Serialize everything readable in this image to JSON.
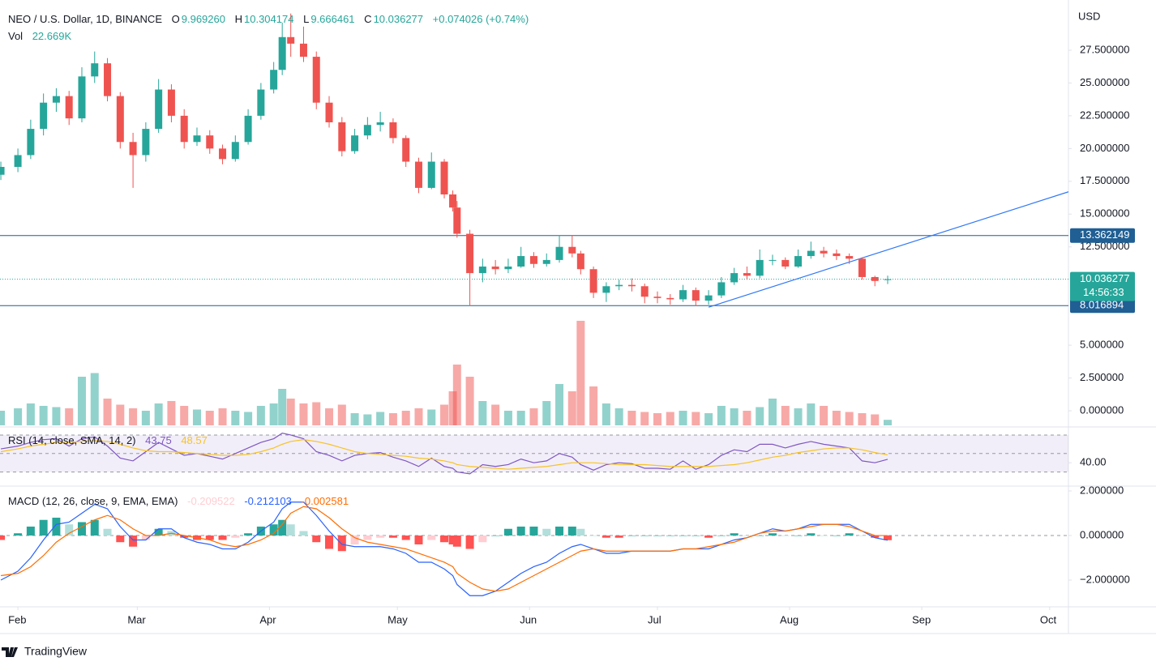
{
  "header": {
    "symbol": "NEO / U.S. Dollar, 1D, BINANCE",
    "fields": [
      {
        "label": "O",
        "value": "9.969260"
      },
      {
        "label": "H",
        "value": "10.304174"
      },
      {
        "label": "L",
        "value": "9.666461"
      },
      {
        "label": "C",
        "value": "10.036277"
      }
    ],
    "change": "+0.074026 (+0.74%)",
    "value_color": "#26a69a"
  },
  "currency": "USD",
  "brand": "TradingView",
  "chart_data": [
    {
      "type": "candlestick",
      "up_color": "#26a69a",
      "down_color": "#ef5350",
      "x": [
        -4,
        0,
        3,
        6,
        9,
        12,
        15,
        18,
        21,
        24,
        27,
        30,
        33,
        36,
        39,
        42,
        45,
        48,
        51,
        54,
        57,
        60,
        62,
        64,
        67,
        70,
        73,
        76,
        79,
        82,
        85,
        88,
        91,
        94,
        97,
        100,
        102,
        103,
        106,
        109,
        112,
        115,
        118,
        121,
        124,
        127,
        130,
        132,
        135,
        138,
        141,
        144,
        147,
        150,
        153,
        156,
        159,
        162,
        165,
        168,
        171,
        174,
        177,
        180,
        183,
        186,
        189,
        192,
        195,
        198,
        201,
        204
      ],
      "open": [
        18.0,
        18.6,
        19.5,
        21.5,
        23.5,
        24.0,
        22.3,
        25.5,
        26.5,
        24.0,
        20.5,
        19.5,
        21.5,
        24.5,
        22.5,
        20.5,
        21.0,
        20.0,
        19.2,
        20.5,
        22.5,
        24.5,
        26.0,
        28.5,
        28.0,
        27.0,
        23.5,
        22.0,
        19.8,
        21.0,
        21.8,
        22.0,
        20.8,
        19.0,
        17.0,
        19.0,
        16.5,
        15.5,
        13.5,
        10.5,
        11.0,
        10.8,
        11.0,
        11.8,
        11.2,
        11.5,
        12.5,
        12.0,
        10.8,
        9.0,
        9.5,
        9.6,
        9.5,
        8.7,
        8.6,
        8.5,
        9.2,
        8.4,
        8.8,
        9.8,
        10.5,
        10.3,
        11.5,
        11.5,
        11.0,
        11.8,
        12.2,
        12.0,
        11.8,
        11.6,
        10.2,
        9.96926
      ],
      "high": [
        19.0,
        20.0,
        22.2,
        24.2,
        24.6,
        24.4,
        26.2,
        27.4,
        26.9,
        24.3,
        21.2,
        22.0,
        25.3,
        24.9,
        23.0,
        21.6,
        21.4,
        20.3,
        21.0,
        23.0,
        25.0,
        26.6,
        29.6,
        30.3,
        29.3,
        27.4,
        24.0,
        22.4,
        21.5,
        22.4,
        22.8,
        22.3,
        21.0,
        19.3,
        19.7,
        19.2,
        16.8,
        16.0,
        13.8,
        11.6,
        11.5,
        11.6,
        12.5,
        12.1,
        12.0,
        13.4,
        13.4,
        12.2,
        11.0,
        9.8,
        10.0,
        10.1,
        9.7,
        9.1,
        8.9,
        9.6,
        9.4,
        9.2,
        10.2,
        10.9,
        11.0,
        12.3,
        11.9,
        11.7,
        12.3,
        12.9,
        12.5,
        12.3,
        12.0,
        11.7,
        10.3,
        10.304174
      ],
      "low": [
        17.6,
        18.2,
        19.2,
        21.0,
        22.8,
        21.8,
        22.0,
        25.0,
        23.6,
        20.0,
        17.0,
        19.0,
        21.2,
        22.0,
        20.0,
        20.2,
        19.6,
        18.8,
        19.0,
        20.3,
        22.2,
        24.2,
        25.6,
        27.0,
        26.6,
        23.0,
        21.6,
        19.4,
        19.6,
        20.7,
        21.3,
        20.4,
        18.6,
        16.6,
        16.9,
        16.2,
        15.2,
        13.2,
        8.0,
        9.8,
        10.4,
        10.5,
        10.9,
        10.9,
        11.0,
        11.3,
        11.7,
        10.4,
        8.6,
        8.3,
        9.2,
        9.1,
        8.2,
        8.2,
        8.1,
        8.3,
        8.0,
        8.1,
        8.6,
        9.6,
        10.0,
        10.1,
        11.1,
        10.8,
        10.9,
        11.6,
        11.7,
        11.5,
        11.2,
        10.0,
        9.5,
        9.666461
      ],
      "close": [
        18.6,
        19.5,
        21.5,
        23.5,
        24.0,
        22.3,
        25.5,
        26.5,
        24.0,
        20.5,
        19.5,
        21.5,
        24.5,
        22.5,
        20.5,
        21.0,
        20.0,
        19.2,
        20.5,
        22.5,
        24.5,
        26.0,
        28.5,
        28.0,
        27.0,
        23.5,
        22.0,
        19.8,
        21.0,
        21.8,
        22.0,
        20.8,
        19.0,
        17.0,
        19.0,
        16.5,
        15.5,
        13.5,
        10.5,
        11.0,
        10.8,
        11.0,
        11.8,
        11.2,
        11.5,
        12.5,
        12.0,
        10.8,
        9.0,
        9.5,
        9.6,
        9.5,
        8.7,
        8.6,
        8.5,
        9.2,
        8.4,
        8.8,
        9.8,
        10.5,
        10.3,
        11.5,
        11.5,
        11.0,
        11.8,
        12.2,
        12.0,
        11.8,
        11.6,
        10.2,
        9.9,
        10.036277
      ],
      "xlim": [
        -4.2,
        246.4
      ],
      "xticks": [
        {
          "value": 0,
          "label": "Feb"
        },
        {
          "value": 28,
          "label": "Mar"
        },
        {
          "value": 59,
          "label": "Apr"
        },
        {
          "value": 89,
          "label": "May"
        },
        {
          "value": 120,
          "label": "Jun"
        },
        {
          "value": 150,
          "label": "Jul"
        },
        {
          "value": 181,
          "label": "Aug"
        },
        {
          "value": 212,
          "label": "Sep"
        },
        {
          "value": 242,
          "label": "Oct"
        }
      ],
      "ylim": [
        -1.11,
        31.02
      ],
      "yticks": [
        {
          "value": 0,
          "label": "0.000000"
        },
        {
          "value": 2.5,
          "label": "2.500000"
        },
        {
          "value": 5,
          "label": "5.000000"
        },
        {
          "value": 12.5,
          "label": "12.500000"
        },
        {
          "value": 15,
          "label": "15.000000"
        },
        {
          "value": 17.5,
          "label": "17.500000"
        },
        {
          "value": 20,
          "label": "20.000000"
        },
        {
          "value": 22.5,
          "label": "22.500000"
        },
        {
          "value": 25,
          "label": "25.000000"
        },
        {
          "value": 27.5,
          "label": "27.500000"
        }
      ],
      "hlines": [
        {
          "value": 13.362149,
          "color": "#1f5f94"
        },
        {
          "value": 8.016894,
          "color": "#1f5f94"
        }
      ],
      "trendline": {
        "x": [
          162,
          246.4
        ],
        "y": [
          7.9,
          16.7
        ],
        "color": "#3179f5"
      },
      "countdown": "14:56:33"
    },
    {
      "type": "bar",
      "legend": {
        "label": "Vol",
        "value": "22.669K"
      },
      "up_color": "rgba(38,166,154,0.5)",
      "down_color": "rgba(239,83,80,0.5)",
      "values": [
        60,
        70,
        90,
        80,
        75,
        70,
        200,
        215,
        110,
        85,
        70,
        60,
        90,
        100,
        80,
        65,
        60,
        70,
        60,
        55,
        80,
        90,
        150,
        110,
        90,
        95,
        70,
        85,
        50,
        45,
        55,
        50,
        60,
        70,
        65,
        85,
        140,
        250,
        200,
        100,
        85,
        60,
        60,
        70,
        100,
        170,
        140,
        430,
        160,
        90,
        70,
        60,
        55,
        50,
        55,
        60,
        55,
        50,
        80,
        70,
        60,
        75,
        110,
        80,
        70,
        90,
        80,
        60,
        55,
        50,
        45,
        22.669
      ],
      "ylim": [
        0,
        1733
      ]
    },
    {
      "type": "line",
      "title": "RSI (14, close, SMA, 14, 2)",
      "ylim": [
        16.5,
        76.1
      ],
      "yticks": [
        {
          "value": 40,
          "label": "40.00"
        }
      ],
      "bands": [
        30,
        50,
        70
      ],
      "band_color": "rgba(126,87,194,0.1)",
      "series": [
        {
          "color": "#7e57c2",
          "values": [
            55,
            58,
            62,
            65,
            66,
            58,
            66,
            68,
            58,
            45,
            42,
            52,
            62,
            55,
            48,
            50,
            47,
            44,
            50,
            56,
            62,
            66,
            72,
            70,
            66,
            52,
            48,
            42,
            48,
            50,
            51,
            46,
            42,
            36,
            45,
            36,
            34,
            30,
            28,
            38,
            36,
            38,
            44,
            40,
            42,
            50,
            46,
            38,
            32,
            38,
            40,
            39,
            34,
            34,
            33,
            42,
            33,
            38,
            48,
            54,
            52,
            60,
            60,
            56,
            60,
            63,
            60,
            58,
            56,
            42,
            40,
            43.75
          ]
        },
        {
          "color": "#f7c325",
          "values": [
            52,
            55,
            58,
            60,
            62,
            62,
            63,
            64,
            63,
            60,
            56,
            53,
            52,
            52,
            51,
            50,
            49,
            48,
            48,
            49,
            52,
            56,
            60,
            63,
            65,
            63,
            60,
            56,
            52,
            50,
            49,
            48,
            47,
            45,
            44,
            42,
            40,
            38,
            36,
            35,
            34,
            33,
            34,
            35,
            36,
            38,
            40,
            40,
            40,
            39,
            38,
            38,
            38,
            37,
            36,
            36,
            36,
            36,
            37,
            38,
            40,
            43,
            46,
            48,
            51,
            53,
            55,
            56,
            56,
            54,
            51,
            48.57
          ]
        }
      ]
    },
    {
      "type": "line",
      "title": "MACD (12, 26, close, 9, EMA, EMA)",
      "ylim": [
        -3.164,
        2.145
      ],
      "yticks": [
        {
          "value": 2,
          "label": "2.000000"
        },
        {
          "value": 0,
          "label": "0.000000"
        },
        {
          "value": -2,
          "label": "−2.000000"
        }
      ],
      "bands": [
        0
      ],
      "bars": {
        "colors": [
          "#26a69a",
          "#b2dfdb",
          "#ff5252",
          "#ffcdd2"
        ],
        "values": [
          -0.2,
          0.1,
          0.4,
          0.7,
          0.8,
          0.5,
          0.6,
          0.7,
          0.3,
          -0.3,
          -0.5,
          -0.2,
          0.3,
          0.2,
          -0.1,
          -0.2,
          -0.2,
          -0.2,
          -0.1,
          0.1,
          0.4,
          0.5,
          0.7,
          0.5,
          0.2,
          -0.3,
          -0.6,
          -0.7,
          -0.4,
          -0.2,
          -0.1,
          -0.1,
          -0.2,
          -0.4,
          -0.2,
          -0.3,
          -0.4,
          -0.5,
          -0.6,
          -0.3,
          0,
          0.3,
          0.4,
          0.4,
          0.3,
          0.4,
          0.4,
          0.3,
          0,
          -0.1,
          -0.1,
          0,
          0,
          0,
          0,
          0,
          0,
          -0.1,
          0,
          0.1,
          0,
          0,
          0.1,
          0,
          0,
          0.1,
          0,
          0,
          0.1,
          0,
          -0.1,
          -0.209522
        ]
      },
      "series": [
        {
          "color": "#2962ff",
          "values": [
            -2.0,
            -1.6,
            -1.0,
            -0.2,
            0.5,
            0.6,
            1.0,
            1.4,
            1.2,
            0.4,
            -0.2,
            -0.2,
            0.3,
            0.3,
            -0.1,
            -0.3,
            -0.4,
            -0.6,
            -0.6,
            -0.3,
            0.2,
            0.6,
            1.2,
            1.5,
            1.5,
            0.9,
            0.2,
            -0.4,
            -0.5,
            -0.5,
            -0.5,
            -0.6,
            -0.8,
            -1.2,
            -1.2,
            -1.5,
            -1.8,
            -2.2,
            -2.7,
            -2.7,
            -2.5,
            -2.1,
            -1.7,
            -1.4,
            -1.2,
            -0.8,
            -0.5,
            -0.4,
            -0.6,
            -0.8,
            -0.8,
            -0.7,
            -0.7,
            -0.7,
            -0.7,
            -0.6,
            -0.6,
            -0.6,
            -0.4,
            -0.2,
            -0.1,
            0.1,
            0.3,
            0.2,
            0.3,
            0.5,
            0.5,
            0.5,
            0.5,
            0.2,
            -0.1,
            -0.212103
          ]
        },
        {
          "color": "#ff6d00",
          "values": [
            -1.8,
            -1.7,
            -1.4,
            -0.9,
            -0.3,
            0.1,
            0.4,
            0.7,
            0.9,
            0.7,
            0.3,
            0.0,
            0.0,
            0.1,
            0.0,
            -0.1,
            -0.2,
            -0.4,
            -0.5,
            -0.4,
            -0.2,
            0.1,
            0.5,
            1.0,
            1.3,
            1.2,
            0.8,
            0.3,
            -0.1,
            -0.3,
            -0.4,
            -0.5,
            -0.6,
            -0.8,
            -1.0,
            -1.2,
            -1.4,
            -1.7,
            -2.1,
            -2.4,
            -2.5,
            -2.4,
            -2.1,
            -1.8,
            -1.5,
            -1.2,
            -0.9,
            -0.7,
            -0.6,
            -0.7,
            -0.7,
            -0.7,
            -0.7,
            -0.7,
            -0.7,
            -0.6,
            -0.6,
            -0.5,
            -0.4,
            -0.3,
            -0.1,
            0.1,
            0.2,
            0.2,
            0.3,
            0.4,
            0.5,
            0.5,
            0.4,
            0.2,
            0.0,
            -0.002581
          ]
        }
      ]
    }
  ]
}
